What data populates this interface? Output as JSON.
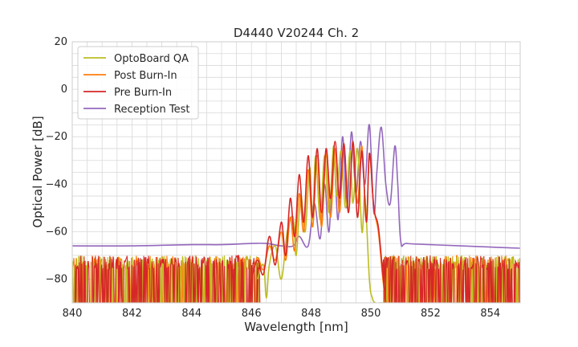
{
  "chart_data": {
    "type": "line",
    "title": "D4440 V20244 Ch. 2",
    "xlabel": "Wavelength [nm]",
    "ylabel": "Optical Power [dB]",
    "xlim": [
      840,
      855
    ],
    "ylim": [
      -90,
      20
    ],
    "xticks": [
      "840",
      "842",
      "844",
      "846",
      "848",
      "850",
      "852",
      "854"
    ],
    "yticks": [
      "20",
      "0",
      "−20",
      "−40",
      "−60",
      "−80"
    ],
    "grid": true,
    "legend_position": "top-left",
    "noise_floor": {
      "note_free": "",
      "band_low": -90,
      "band_high": -70
    },
    "series": [
      {
        "name": "OptoBoard QA",
        "color": "#bcbd22",
        "x": [
          846.2,
          846.4,
          846.5,
          846.6,
          846.8,
          847.0,
          847.2,
          847.4,
          847.5,
          847.65,
          847.8,
          847.95,
          848.05,
          848.15,
          848.3,
          848.45,
          848.6,
          848.75,
          848.85,
          849.0,
          849.15,
          849.3,
          849.4,
          849.55,
          849.7,
          849.8,
          849.95,
          850.05,
          850.15,
          850.3,
          850.4
        ],
        "y": [
          -80,
          -74,
          -88,
          -74,
          -66,
          -80,
          -60,
          -54,
          -70,
          -45,
          -60,
          -33,
          -55,
          -28,
          -55,
          -28,
          -52,
          -24,
          -45,
          -26,
          -50,
          -26,
          -48,
          -25,
          -60,
          -45,
          -80,
          -88,
          -90,
          -90,
          -90
        ]
      },
      {
        "name": "Post Burn-In",
        "color": "#ff7f0e",
        "x": [
          846.0,
          846.2,
          846.4,
          846.6,
          846.8,
          847.0,
          847.15,
          847.3,
          847.45,
          847.6,
          847.75,
          847.9,
          848.05,
          848.2,
          848.35,
          848.5,
          848.65,
          848.8,
          848.95,
          849.1,
          849.25,
          849.4,
          849.55,
          849.7,
          849.85,
          849.95,
          850.1,
          850.25,
          850.4,
          850.5
        ],
        "y": [
          -80,
          -71,
          -76,
          -66,
          -72,
          -60,
          -72,
          -54,
          -68,
          -44,
          -60,
          -34,
          -58,
          -28,
          -58,
          -27,
          -54,
          -25,
          -52,
          -24,
          -52,
          -23,
          -48,
          -24,
          -56,
          -28,
          -50,
          -60,
          -80,
          -90
        ]
      },
      {
        "name": "Pre Burn-In",
        "color": "#d62728",
        "x": [
          846.0,
          846.2,
          846.4,
          846.6,
          846.8,
          847.0,
          847.15,
          847.3,
          847.45,
          847.6,
          847.75,
          847.9,
          848.05,
          848.2,
          848.35,
          848.5,
          848.65,
          848.8,
          848.95,
          849.1,
          849.25,
          849.4,
          849.55,
          849.7,
          849.85,
          849.95,
          850.1,
          850.25,
          850.4,
          850.5
        ],
        "y": [
          -80,
          -72,
          -78,
          -62,
          -74,
          -56,
          -70,
          -46,
          -62,
          -36,
          -56,
          -28,
          -54,
          -25,
          -52,
          -25,
          -46,
          -22,
          -46,
          -23,
          -52,
          -22,
          -54,
          -26,
          -56,
          -27,
          -50,
          -58,
          -78,
          -90
        ]
      },
      {
        "name": "Reception Test",
        "color": "#9467bd",
        "x": [
          840.0,
          842.0,
          844.0,
          845.0,
          846.0,
          846.5,
          847.0,
          847.4,
          847.6,
          847.9,
          848.1,
          848.3,
          848.45,
          848.6,
          848.75,
          848.9,
          849.05,
          849.2,
          849.35,
          849.5,
          849.65,
          849.8,
          849.95,
          850.1,
          850.2,
          850.35,
          850.5,
          850.65,
          850.8,
          850.9,
          851.0,
          851.2,
          852.0,
          853.0,
          854.0,
          855.0
        ],
        "y": [
          -66,
          -66,
          -65.5,
          -65.5,
          -65,
          -65,
          -66,
          -66,
          -62,
          -66,
          -48,
          -63,
          -40,
          -60,
          -26,
          -55,
          -20,
          -50,
          -18,
          -44,
          -22,
          -40,
          -15,
          -52,
          -35,
          -16,
          -40,
          -48,
          -24,
          -40,
          -64,
          -65,
          -65.5,
          -66,
          -66.5,
          -67
        ]
      }
    ]
  }
}
